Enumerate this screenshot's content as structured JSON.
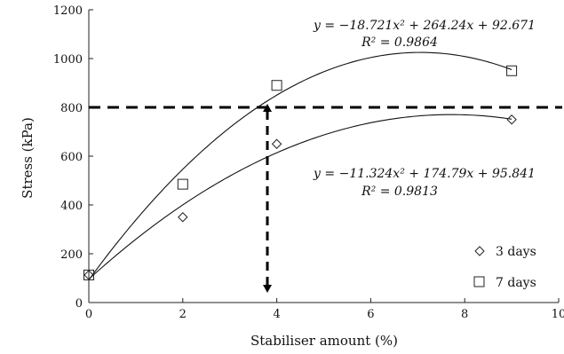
{
  "chart_data": {
    "type": "scatter",
    "xlabel": "Stabiliser amount (%)",
    "ylabel": "Stress (kPa)",
    "xlim": [
      0,
      10
    ],
    "ylim": [
      0,
      1200
    ],
    "xticks": [
      0,
      2,
      4,
      6,
      8,
      10
    ],
    "yticks": [
      0,
      200,
      400,
      600,
      800,
      1000,
      1200
    ],
    "grid": false,
    "legend_position": "bottom-right",
    "series": [
      {
        "name": "3 days",
        "marker": "diamond",
        "x": [
          0,
          2,
          4,
          9
        ],
        "y": [
          113,
          350,
          650,
          750
        ],
        "fit": {
          "a": -11.324,
          "b": 174.79,
          "c": 95.841
        },
        "equation": "y = −11.324x² + 174.79x + 95.841",
        "r2_label": "R² = 0.9813"
      },
      {
        "name": "7 days",
        "marker": "square",
        "x": [
          0,
          2,
          4,
          9
        ],
        "y": [
          113,
          485,
          890,
          950
        ],
        "fit": {
          "a": -18.721,
          "b": 264.24,
          "c": 92.671
        },
        "equation": "y = −18.721x² + 264.24x + 92.671",
        "r2_label": "R² = 0.9864"
      }
    ],
    "annotations": {
      "threshold_y": 800,
      "drop_x": 3.8
    }
  }
}
